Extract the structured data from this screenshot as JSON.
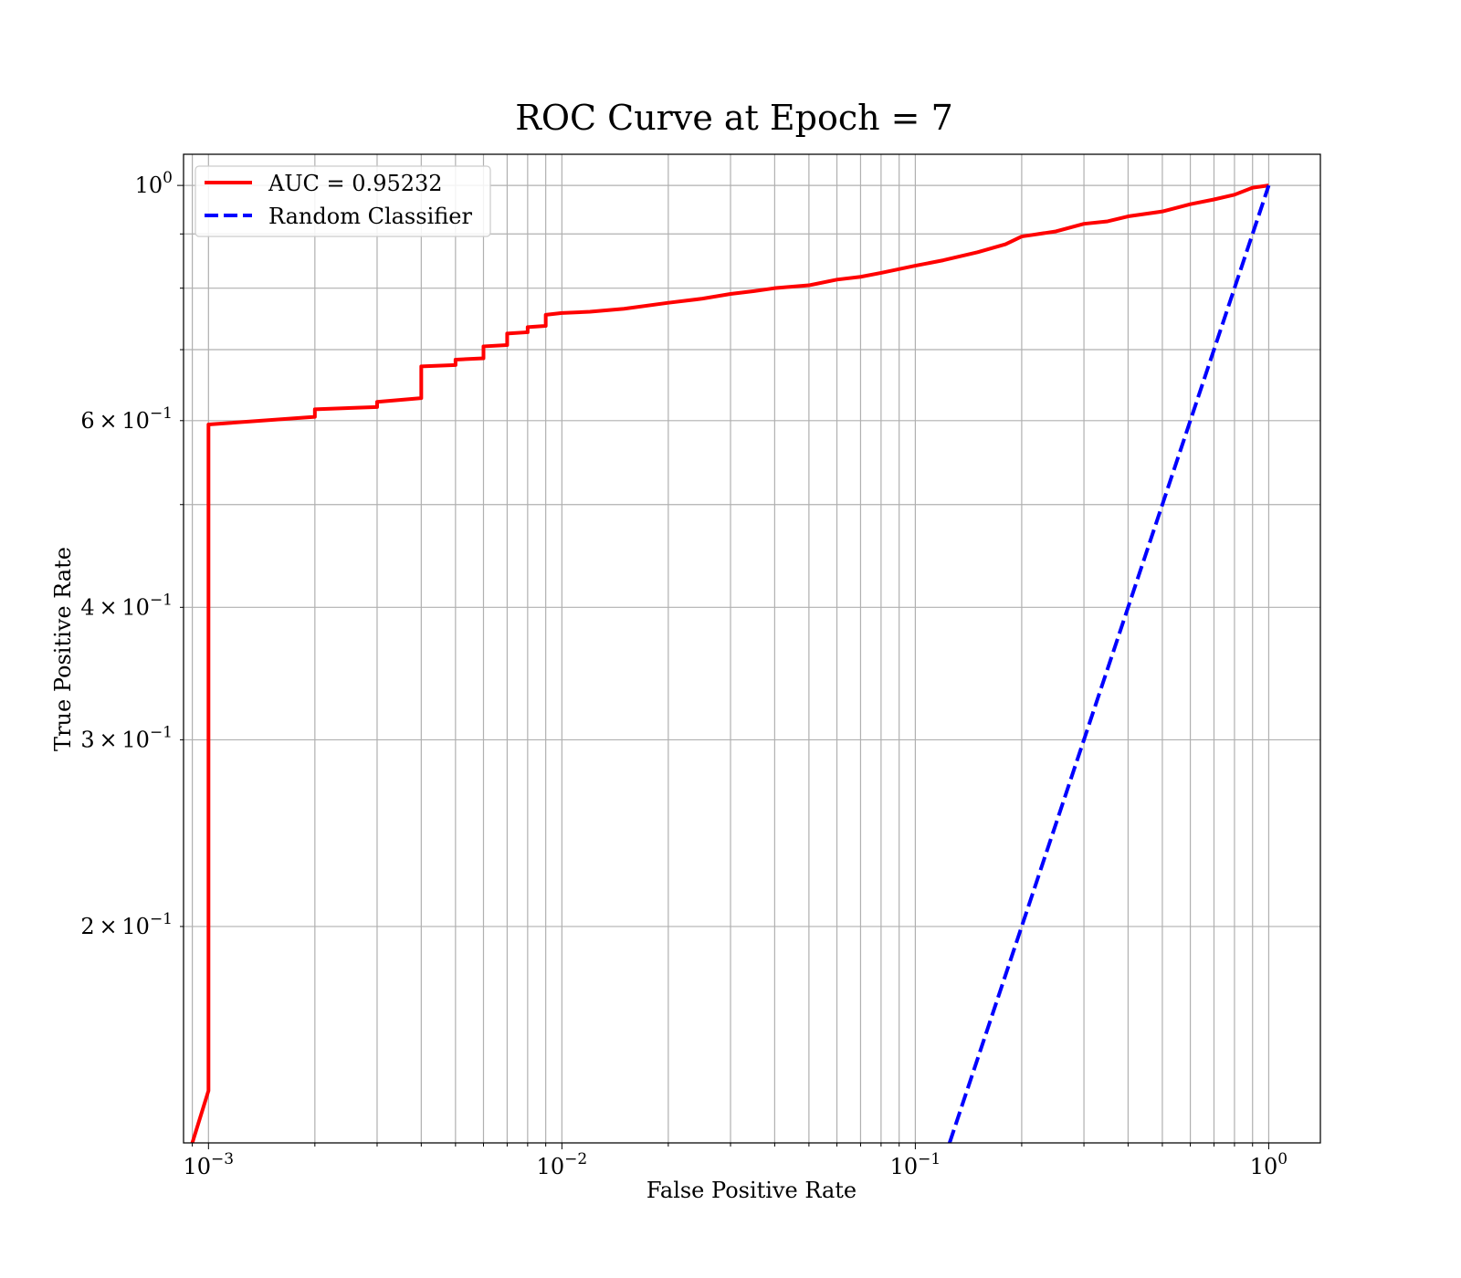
{
  "chart_data": {
    "type": "line",
    "title": "ROC Curve at Epoch = 7",
    "xlabel": "False Positive Rate",
    "ylabel": "True Positive Rate",
    "xscale": "log",
    "yscale": "log",
    "xlim": [
      0.00085,
      1.4
    ],
    "ylim": [
      0.125,
      1.07
    ],
    "grid": true,
    "grid_which": "both",
    "legend_position": "upper left",
    "x_ticks": [
      {
        "value": 0.001,
        "base": "10",
        "exp": "−3"
      },
      {
        "value": 0.01,
        "base": "10",
        "exp": "−2"
      },
      {
        "value": 0.1,
        "base": "10",
        "exp": "−1"
      },
      {
        "value": 1,
        "base": "10",
        "exp": "0"
      }
    ],
    "y_ticks": [
      {
        "value": 0.2,
        "mant": "2",
        "times": "×",
        "base": "10",
        "exp": "−1"
      },
      {
        "value": 0.3,
        "mant": "3",
        "times": "×",
        "base": "10",
        "exp": "−1"
      },
      {
        "value": 0.4,
        "mant": "4",
        "times": "×",
        "base": "10",
        "exp": "−1"
      },
      {
        "value": 0.6,
        "mant": "6",
        "times": "×",
        "base": "10",
        "exp": "−1"
      },
      {
        "value": 1,
        "mant": "",
        "times": "",
        "base": "10",
        "exp": "0"
      }
    ],
    "series": [
      {
        "name": "AUC = 0.95232",
        "color": "#ff0000",
        "style": "solid",
        "x": [
          0.0009,
          0.001,
          0.001,
          0.002,
          0.002,
          0.003,
          0.003,
          0.004,
          0.004,
          0.005,
          0.005,
          0.006,
          0.006,
          0.007,
          0.007,
          0.008,
          0.008,
          0.009,
          0.009,
          0.01,
          0.012,
          0.015,
          0.02,
          0.025,
          0.03,
          0.035,
          0.04,
          0.05,
          0.06,
          0.07,
          0.08,
          0.1,
          0.12,
          0.15,
          0.18,
          0.2,
          0.25,
          0.3,
          0.35,
          0.4,
          0.5,
          0.6,
          0.7,
          0.8,
          0.9,
          1.0
        ],
        "y": [
          0.125,
          0.14,
          0.595,
          0.605,
          0.615,
          0.618,
          0.625,
          0.63,
          0.675,
          0.677,
          0.685,
          0.687,
          0.705,
          0.707,
          0.725,
          0.727,
          0.735,
          0.737,
          0.755,
          0.758,
          0.76,
          0.765,
          0.775,
          0.782,
          0.79,
          0.795,
          0.8,
          0.805,
          0.815,
          0.82,
          0.827,
          0.84,
          0.85,
          0.865,
          0.88,
          0.895,
          0.905,
          0.92,
          0.925,
          0.935,
          0.945,
          0.96,
          0.97,
          0.98,
          0.995,
          1.0
        ]
      },
      {
        "name": "Random Classifier",
        "color": "#0000ff",
        "style": "dashed",
        "x": [
          0.125,
          1.0
        ],
        "y": [
          0.125,
          1.0
        ]
      }
    ]
  }
}
